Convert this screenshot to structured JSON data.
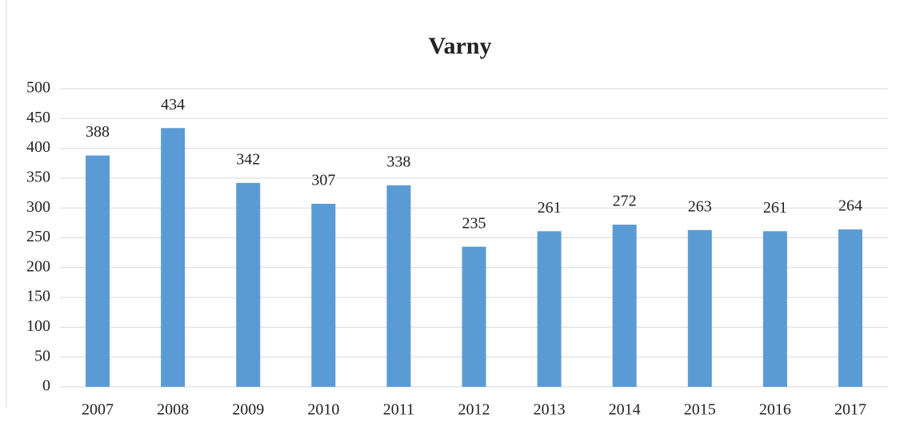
{
  "chart_data": {
    "type": "bar",
    "title": "Varny",
    "categories": [
      "2007",
      "2008",
      "2009",
      "2010",
      "2011",
      "2012",
      "2013",
      "2014",
      "2015",
      "2016",
      "2017"
    ],
    "values": [
      388,
      434,
      342,
      307,
      338,
      235,
      261,
      272,
      263,
      261,
      264
    ],
    "color": "#5b9bd5",
    "ylim": [
      0,
      500
    ],
    "yticks": [
      0,
      50,
      100,
      150,
      200,
      250,
      300,
      350,
      400,
      450,
      500
    ],
    "grid": true
  }
}
